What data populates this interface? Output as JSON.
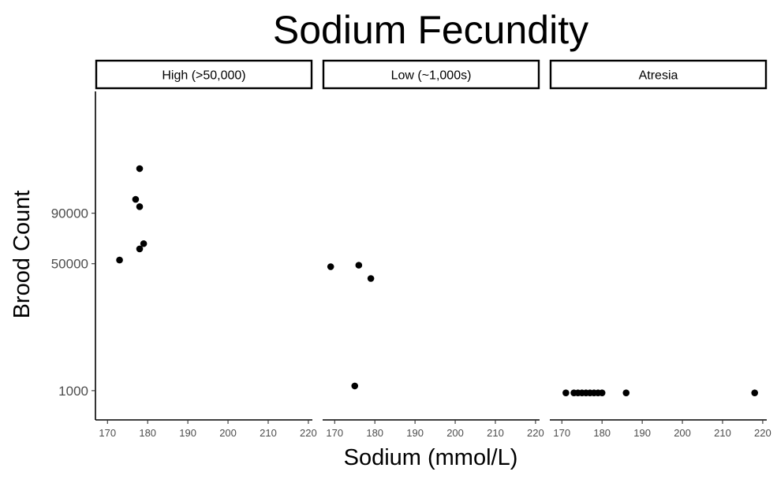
{
  "chart_data": {
    "type": "scatter",
    "title": "Sodium Fecundity",
    "xlabel": "Sodium (mmol/L)",
    "ylabel": "Brood Count",
    "xlim": [
      167,
      221
    ],
    "x_ticks": [
      170,
      180,
      190,
      200,
      210,
      220
    ],
    "y_ticks": [
      1000,
      50000,
      90000
    ],
    "y_scale": "sqrt",
    "ylim": [
      0,
      150000
    ],
    "grid": false,
    "facets": [
      {
        "label": "High (>50,000)",
        "points": [
          {
            "x": 173,
            "y": 52500
          },
          {
            "x": 177,
            "y": 103000
          },
          {
            "x": 178,
            "y": 135000
          },
          {
            "x": 178,
            "y": 96000
          },
          {
            "x": 178,
            "y": 60500
          },
          {
            "x": 179,
            "y": 64500
          }
        ]
      },
      {
        "label": "Low (~1,000s)",
        "points": [
          {
            "x": 169,
            "y": 48000
          },
          {
            "x": 175,
            "y": 1500
          },
          {
            "x": 176,
            "y": 49000
          },
          {
            "x": 179,
            "y": 40500
          }
        ]
      },
      {
        "label": "Atresia",
        "points": [
          {
            "x": 171,
            "y": 800
          },
          {
            "x": 173,
            "y": 800
          },
          {
            "x": 174,
            "y": 800
          },
          {
            "x": 175,
            "y": 800
          },
          {
            "x": 176,
            "y": 800
          },
          {
            "x": 177,
            "y": 800
          },
          {
            "x": 178,
            "y": 800
          },
          {
            "x": 179,
            "y": 800
          },
          {
            "x": 180,
            "y": 800
          },
          {
            "x": 186,
            "y": 800
          },
          {
            "x": 218,
            "y": 800
          }
        ]
      }
    ]
  }
}
